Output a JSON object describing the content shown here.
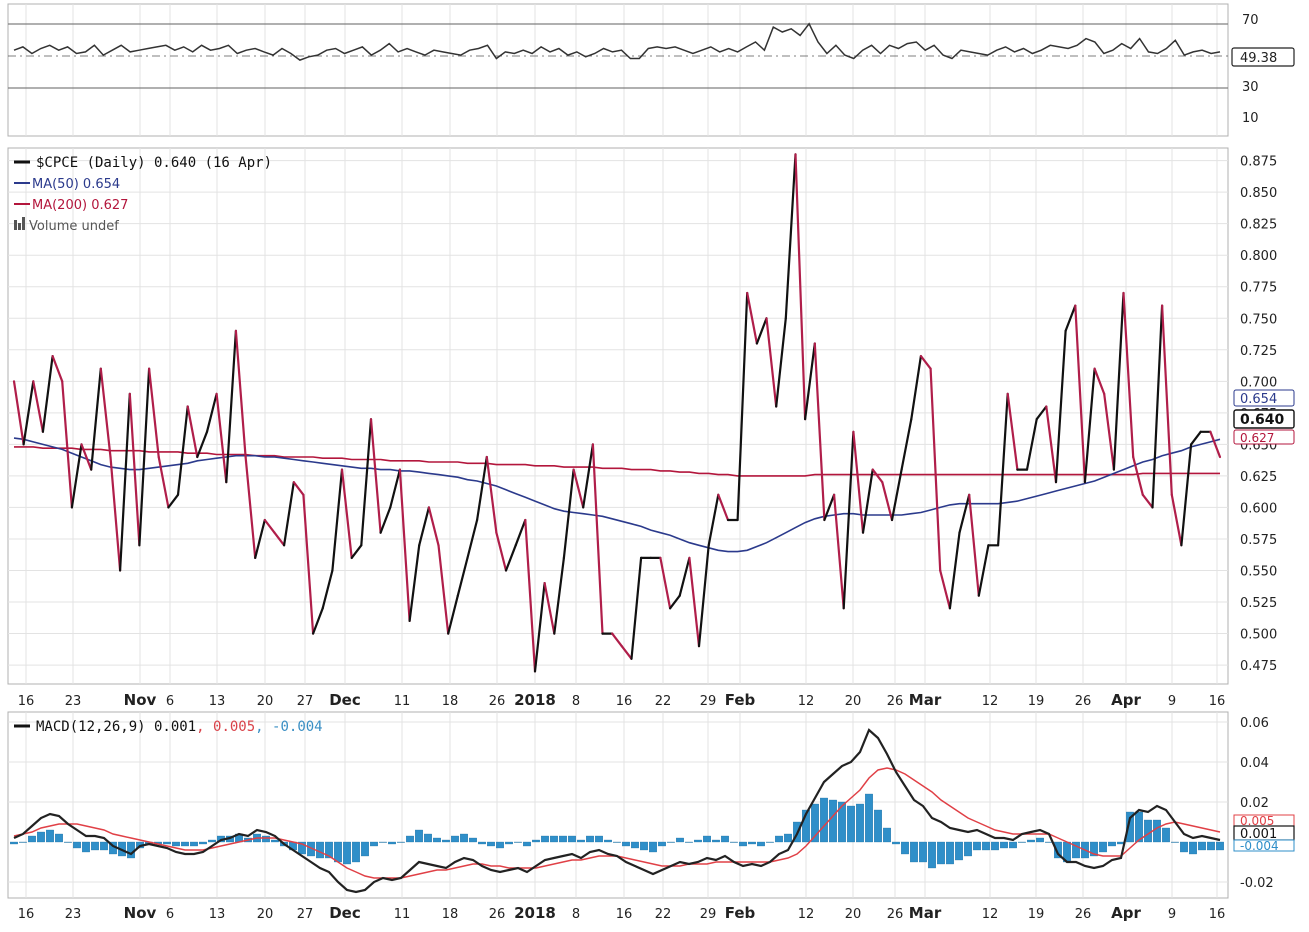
{
  "chart_data": [
    {
      "panel": "rsi",
      "type": "line",
      "ylim": [
        0,
        80
      ],
      "ticks": [
        70,
        30,
        10
      ],
      "last_value_label": "49.38",
      "colors": {
        "line": "#333333",
        "label_box": "#222222"
      },
      "values": [
        52,
        54,
        50,
        53,
        55,
        52,
        54,
        50,
        51,
        55,
        49,
        52,
        55,
        51,
        52,
        53,
        54,
        55,
        52,
        54,
        51,
        55,
        52,
        53,
        55,
        50,
        52,
        53,
        51,
        49,
        53,
        50,
        46,
        48,
        49,
        52,
        53,
        50,
        52,
        54,
        49,
        52,
        56,
        51,
        53,
        51,
        49,
        52,
        51,
        50,
        49,
        52,
        53,
        55,
        47,
        51,
        50,
        52,
        50,
        54,
        51,
        53,
        49,
        51,
        48,
        50,
        53,
        51,
        52,
        47,
        47,
        53,
        54,
        53,
        54,
        52,
        50,
        52,
        54,
        51,
        53,
        51,
        54,
        57,
        52,
        66,
        63,
        65,
        61,
        68,
        57,
        50,
        55,
        49,
        47,
        52,
        55,
        50,
        55,
        53,
        56,
        57,
        52,
        55,
        49,
        47,
        52,
        51,
        50,
        49,
        52,
        54,
        51,
        53,
        50,
        52,
        55,
        54,
        53,
        55,
        59,
        57,
        50,
        52,
        56,
        53,
        59,
        51,
        50,
        53,
        58,
        49,
        51,
        52,
        50,
        51
      ]
    },
    {
      "panel": "price",
      "type": "line",
      "x_labels": [
        "16",
        "23",
        "Nov",
        "6",
        "13",
        "20",
        "27",
        "Dec",
        "11",
        "18",
        "26",
        "2018",
        "8",
        "16",
        "22",
        "29",
        "Feb",
        "12",
        "20",
        "26",
        "Mar",
        "12",
        "19",
        "26",
        "Apr",
        "9",
        "16"
      ],
      "ylim": [
        0.46,
        0.885
      ],
      "yticks": [
        "0.875",
        "0.850",
        "0.825",
        "0.800",
        "0.775",
        "0.750",
        "0.725",
        "0.700",
        "0.675",
        "0.650",
        "0.625",
        "0.600",
        "0.575",
        "0.550",
        "0.525",
        "0.500",
        "0.475"
      ],
      "end_labels": {
        "ma50": "0.654",
        "price": "0.640",
        "ma200": "0.627"
      },
      "legend": [
        {
          "text": "$CPCE (Daily) 0.640 (16 Apr)",
          "color": "#111111"
        },
        {
          "text": "MA(50) 0.654",
          "color": "#2b3a8c"
        },
        {
          "text": "MA(200) 0.627",
          "color": "#b3163c"
        },
        {
          "text": "Volume undef",
          "color": "#555555"
        }
      ],
      "colors": {
        "up": "#111111",
        "down": "#b01e4a",
        "ma50": "#2b3a8c",
        "ma200": "#b3163c"
      },
      "series": [
        {
          "name": "$CPCE",
          "values": [
            0.7,
            0.65,
            0.7,
            0.66,
            0.72,
            0.7,
            0.6,
            0.65,
            0.63,
            0.71,
            0.64,
            0.55,
            0.69,
            0.57,
            0.71,
            0.64,
            0.6,
            0.61,
            0.68,
            0.64,
            0.66,
            0.69,
            0.62,
            0.74,
            0.64,
            0.56,
            0.59,
            0.58,
            0.57,
            0.62,
            0.61,
            0.5,
            0.52,
            0.55,
            0.63,
            0.56,
            0.57,
            0.67,
            0.58,
            0.6,
            0.63,
            0.51,
            0.57,
            0.6,
            0.57,
            0.5,
            0.53,
            0.56,
            0.59,
            0.64,
            0.58,
            0.55,
            0.57,
            0.59,
            0.47,
            0.54,
            0.5,
            0.56,
            0.63,
            0.6,
            0.65,
            0.5,
            0.5,
            0.49,
            0.48,
            0.56,
            0.56,
            0.56,
            0.52,
            0.53,
            0.56,
            0.49,
            0.57,
            0.61,
            0.59,
            0.59,
            0.77,
            0.73,
            0.75,
            0.68,
            0.75,
            0.88,
            0.67,
            0.73,
            0.59,
            0.61,
            0.52,
            0.66,
            0.58,
            0.63,
            0.62,
            0.59,
            0.63,
            0.67,
            0.72,
            0.71,
            0.55,
            0.52,
            0.58,
            0.61,
            0.53,
            0.57,
            0.57,
            0.69,
            0.63,
            0.63,
            0.67,
            0.68,
            0.62,
            0.74,
            0.76,
            0.62,
            0.71,
            0.69,
            0.63,
            0.77,
            0.64,
            0.61,
            0.6,
            0.76,
            0.61,
            0.57,
            0.65,
            0.66,
            0.66,
            0.64
          ]
        },
        {
          "name": "MA(50)",
          "values": [
            0.655,
            0.654,
            0.652,
            0.65,
            0.648,
            0.646,
            0.643,
            0.64,
            0.637,
            0.634,
            0.632,
            0.631,
            0.63,
            0.63,
            0.631,
            0.632,
            0.633,
            0.634,
            0.635,
            0.637,
            0.638,
            0.639,
            0.64,
            0.641,
            0.641,
            0.641,
            0.64,
            0.64,
            0.639,
            0.638,
            0.637,
            0.636,
            0.635,
            0.634,
            0.633,
            0.632,
            0.631,
            0.631,
            0.63,
            0.63,
            0.629,
            0.629,
            0.628,
            0.627,
            0.626,
            0.625,
            0.624,
            0.622,
            0.621,
            0.619,
            0.617,
            0.614,
            0.611,
            0.608,
            0.605,
            0.602,
            0.599,
            0.597,
            0.596,
            0.595,
            0.594,
            0.593,
            0.591,
            0.589,
            0.587,
            0.585,
            0.582,
            0.58,
            0.578,
            0.575,
            0.572,
            0.57,
            0.568,
            0.566,
            0.565,
            0.565,
            0.566,
            0.569,
            0.572,
            0.576,
            0.58,
            0.584,
            0.588,
            0.591,
            0.593,
            0.594,
            0.595,
            0.595,
            0.594,
            0.594,
            0.594,
            0.594,
            0.594,
            0.595,
            0.596,
            0.598,
            0.6,
            0.602,
            0.603,
            0.603,
            0.603,
            0.603,
            0.603,
            0.604,
            0.605,
            0.607,
            0.609,
            0.611,
            0.613,
            0.615,
            0.617,
            0.619,
            0.621,
            0.624,
            0.627,
            0.63,
            0.633,
            0.636,
            0.638,
            0.641,
            0.643,
            0.645,
            0.648,
            0.65,
            0.652,
            0.654
          ]
        },
        {
          "name": "MA(200)",
          "values": [
            0.648,
            0.648,
            0.648,
            0.647,
            0.647,
            0.647,
            0.647,
            0.646,
            0.646,
            0.646,
            0.645,
            0.645,
            0.645,
            0.645,
            0.644,
            0.644,
            0.644,
            0.644,
            0.643,
            0.643,
            0.643,
            0.642,
            0.642,
            0.642,
            0.642,
            0.641,
            0.641,
            0.641,
            0.64,
            0.64,
            0.64,
            0.64,
            0.639,
            0.639,
            0.639,
            0.638,
            0.638,
            0.638,
            0.638,
            0.637,
            0.637,
            0.637,
            0.637,
            0.636,
            0.636,
            0.636,
            0.636,
            0.635,
            0.635,
            0.635,
            0.634,
            0.634,
            0.634,
            0.634,
            0.633,
            0.633,
            0.633,
            0.632,
            0.632,
            0.632,
            0.632,
            0.631,
            0.631,
            0.631,
            0.63,
            0.63,
            0.63,
            0.629,
            0.629,
            0.628,
            0.628,
            0.627,
            0.627,
            0.626,
            0.626,
            0.625,
            0.625,
            0.625,
            0.625,
            0.625,
            0.625,
            0.625,
            0.625,
            0.626,
            0.626,
            0.626,
            0.626,
            0.626,
            0.626,
            0.626,
            0.626,
            0.626,
            0.626,
            0.626,
            0.626,
            0.626,
            0.626,
            0.626,
            0.626,
            0.626,
            0.626,
            0.626,
            0.626,
            0.626,
            0.626,
            0.626,
            0.626,
            0.626,
            0.626,
            0.626,
            0.626,
            0.626,
            0.626,
            0.626,
            0.626,
            0.626,
            0.626,
            0.627,
            0.627,
            0.627,
            0.627,
            0.627,
            0.627,
            0.627,
            0.627,
            0.627
          ]
        }
      ]
    },
    {
      "panel": "macd",
      "type": "line",
      "title": "MACD(12,26,9) 0.001, 0.005, -0.004",
      "legend": [
        {
          "text": "MACD(12,26,9) 0.001",
          "color": "#111111"
        },
        {
          "text": ", 0.005",
          "color": "#d9434a"
        },
        {
          "text": ", -0.004",
          "color": "#3a8fc4"
        }
      ],
      "ylim": [
        -0.028,
        0.065
      ],
      "yticks": [
        "0.06",
        "0.04",
        "0.02",
        "-0.02"
      ],
      "end_labels": {
        "signal": "0.005",
        "macd": "0.001",
        "hist": "-0.004"
      },
      "x_labels": [
        "16",
        "23",
        "Nov",
        "6",
        "13",
        "20",
        "27",
        "Dec",
        "11",
        "18",
        "26",
        "2018",
        "8",
        "16",
        "22",
        "29",
        "Feb",
        "12",
        "20",
        "26",
        "Mar",
        "12",
        "19",
        "26",
        "Apr",
        "9",
        "16"
      ],
      "colors": {
        "macd": "#222222",
        "signal": "#e04046",
        "histogram": "#2f8fc9"
      },
      "series": [
        {
          "name": "MACD",
          "values": [
            0.002,
            0.004,
            0.008,
            0.012,
            0.014,
            0.013,
            0.009,
            0.006,
            0.003,
            0.003,
            0.002,
            -0.002,
            -0.004,
            -0.006,
            -0.002,
            -0.001,
            -0.002,
            -0.003,
            -0.005,
            -0.006,
            -0.006,
            -0.005,
            -0.002,
            0.001,
            0.002,
            0.004,
            0.003,
            0.006,
            0.005,
            0.003,
            -0.001,
            -0.004,
            -0.007,
            -0.01,
            -0.013,
            -0.015,
            -0.02,
            -0.024,
            -0.025,
            -0.024,
            -0.02,
            -0.018,
            -0.019,
            -0.018,
            -0.014,
            -0.01,
            -0.011,
            -0.012,
            -0.013,
            -0.01,
            -0.008,
            -0.009,
            -0.012,
            -0.014,
            -0.015,
            -0.014,
            -0.013,
            -0.015,
            -0.012,
            -0.009,
            -0.008,
            -0.007,
            -0.006,
            -0.008,
            -0.005,
            -0.004,
            -0.006,
            -0.007,
            -0.01,
            -0.012,
            -0.014,
            -0.016,
            -0.014,
            -0.012,
            -0.01,
            -0.011,
            -0.01,
            -0.008,
            -0.009,
            -0.007,
            -0.01,
            -0.012,
            -0.011,
            -0.012,
            -0.01,
            -0.006,
            -0.004,
            0.004,
            0.014,
            0.022,
            0.03,
            0.034,
            0.038,
            0.04,
            0.045,
            0.056,
            0.052,
            0.044,
            0.035,
            0.028,
            0.021,
            0.018,
            0.012,
            0.01,
            0.007,
            0.006,
            0.005,
            0.006,
            0.004,
            0.002,
            0.002,
            0.001,
            0.004,
            0.005,
            0.006,
            0.004,
            -0.006,
            -0.01,
            -0.01,
            -0.012,
            -0.013,
            -0.012,
            -0.009,
            -0.008,
            0.012,
            0.016,
            0.015,
            0.018,
            0.016,
            0.01,
            0.004,
            0.002,
            0.003,
            0.002,
            0.001
          ]
        },
        {
          "name": "Signal",
          "values": [
            0.003,
            0.004,
            0.005,
            0.007,
            0.008,
            0.009,
            0.009,
            0.009,
            0.008,
            0.007,
            0.006,
            0.004,
            0.003,
            0.002,
            0.001,
            0.0,
            -0.001,
            -0.002,
            -0.003,
            -0.004,
            -0.004,
            -0.004,
            -0.003,
            -0.002,
            -0.001,
            0.0,
            0.001,
            0.002,
            0.002,
            0.002,
            0.001,
            0.0,
            -0.001,
            -0.003,
            -0.005,
            -0.007,
            -0.01,
            -0.013,
            -0.015,
            -0.017,
            -0.018,
            -0.018,
            -0.018,
            -0.018,
            -0.017,
            -0.016,
            -0.015,
            -0.014,
            -0.014,
            -0.013,
            -0.012,
            -0.011,
            -0.011,
            -0.012,
            -0.012,
            -0.013,
            -0.013,
            -0.013,
            -0.013,
            -0.012,
            -0.011,
            -0.01,
            -0.009,
            -0.009,
            -0.008,
            -0.007,
            -0.007,
            -0.007,
            -0.008,
            -0.009,
            -0.01,
            -0.011,
            -0.012,
            -0.012,
            -0.012,
            -0.011,
            -0.011,
            -0.011,
            -0.01,
            -0.01,
            -0.01,
            -0.01,
            -0.01,
            -0.01,
            -0.01,
            -0.009,
            -0.008,
            -0.006,
            -0.002,
            0.003,
            0.008,
            0.013,
            0.018,
            0.022,
            0.026,
            0.032,
            0.036,
            0.037,
            0.036,
            0.034,
            0.031,
            0.028,
            0.025,
            0.021,
            0.018,
            0.015,
            0.012,
            0.01,
            0.008,
            0.006,
            0.005,
            0.004,
            0.004,
            0.004,
            0.004,
            0.004,
            0.002,
            0.0,
            -0.002,
            -0.004,
            -0.006,
            -0.007,
            -0.007,
            -0.007,
            -0.003,
            0.001,
            0.004,
            0.007,
            0.009,
            0.01,
            0.009,
            0.008,
            0.007,
            0.006,
            0.005
          ]
        }
      ]
    }
  ]
}
